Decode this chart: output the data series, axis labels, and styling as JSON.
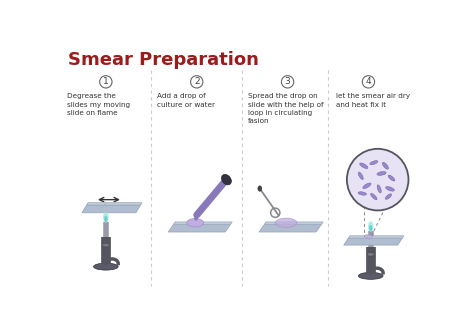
{
  "title": "Smear Preparation",
  "title_color": "#9B1C1C",
  "title_fontsize": 13,
  "background_color": "#ffffff",
  "step_numbers": [
    "1",
    "2",
    "3",
    "4"
  ],
  "step_texts": [
    "Degrease the\nslides my moving\nslide on flame",
    "Add a drop of\nculture or water",
    "Spread the drop on\nslide with the help of\nloop in circulating\nfasion",
    "let the smear air dry\nand heat fix it"
  ],
  "divider_color": "#cccccc",
  "text_color": "#333333",
  "slide_color": "#c8cfe0",
  "slide_edge_color": "#9aabbb",
  "slide_section_color": "#b0bcd0",
  "purple_drop": "#c0aee0",
  "purple_drop_edge": "#a090c8",
  "stand_dark": "#555560",
  "stand_mid": "#777780",
  "stand_light": "#999aa8",
  "base_color": "#5a5a68",
  "flame_outer": "#a0e8e0",
  "flame_inner": "#60cccc",
  "dropper_purple": "#8877bb",
  "dropper_black": "#333340",
  "loop_color": "#888890",
  "bacteria_color": "#7766aa",
  "bacteria_fill": "#9988cc",
  "mag_bg": "#e8e2f5",
  "mag_edge": "#555560",
  "arrow_color": "#333333"
}
